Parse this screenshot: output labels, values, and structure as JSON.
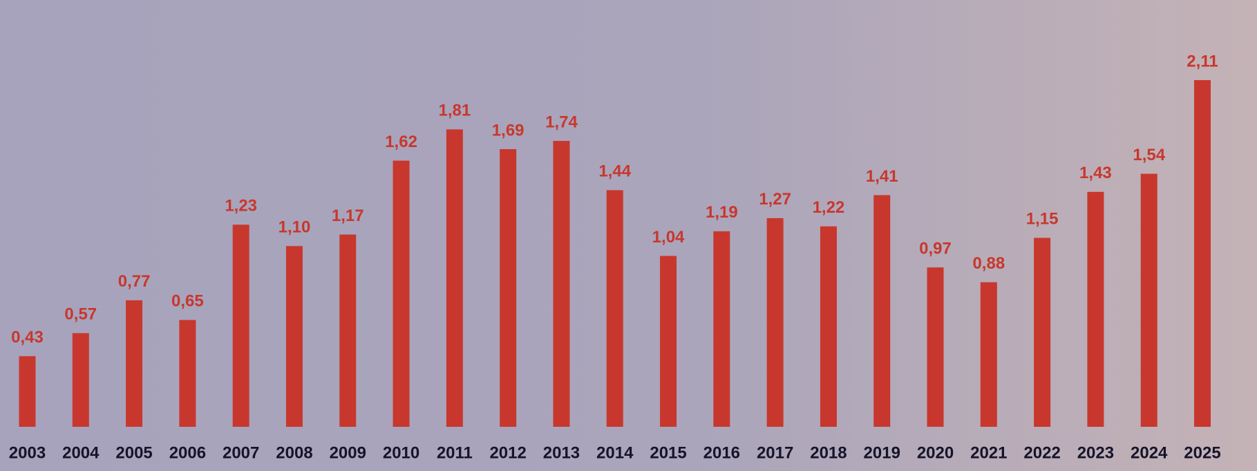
{
  "chart_data": {
    "type": "bar",
    "categories": [
      "2003",
      "2004",
      "2005",
      "2006",
      "2007",
      "2008",
      "2009",
      "2010",
      "2011",
      "2012",
      "2013",
      "2014",
      "2015",
      "2016",
      "2017",
      "2018",
      "2019",
      "2020",
      "2021",
      "2022",
      "2023",
      "2024",
      "2025"
    ],
    "values": [
      0.43,
      0.57,
      0.77,
      0.65,
      1.23,
      1.1,
      1.17,
      1.62,
      1.81,
      1.69,
      1.74,
      1.44,
      1.04,
      1.19,
      1.27,
      1.22,
      1.41,
      0.97,
      0.88,
      1.15,
      1.43,
      1.54,
      2.11
    ],
    "value_labels": [
      "0,43",
      "0,57",
      "0,77",
      "0,65",
      "1,23",
      "1,10",
      "1,17",
      "1,62",
      "1,81",
      "1,69",
      "1,74",
      "1,44",
      "1,04",
      "1,19",
      "1,27",
      "1,22",
      "1,41",
      "0,97",
      "0,88",
      "1,15",
      "1,43",
      "1,54",
      "2,11"
    ],
    "color": "#c8372d"
  }
}
